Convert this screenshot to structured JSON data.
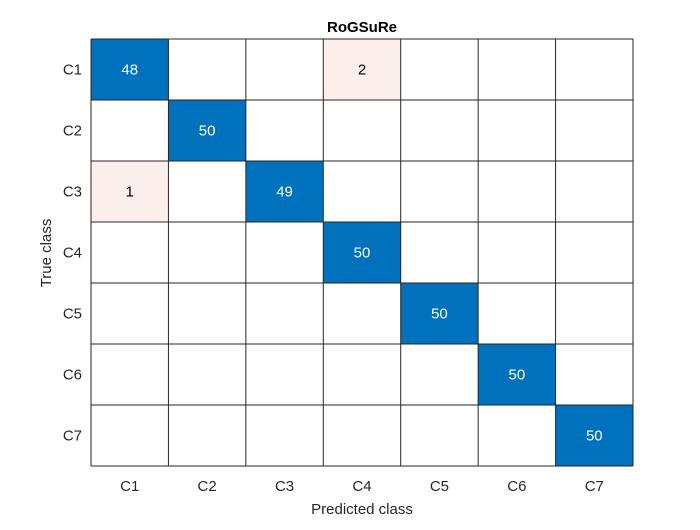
{
  "chart_data": {
    "type": "heatmap",
    "title": "RoGSuRe",
    "xlabel": "Predicted class",
    "ylabel": "True class",
    "row_labels": [
      "C1",
      "C2",
      "C3",
      "C4",
      "C5",
      "C6",
      "C7"
    ],
    "col_labels": [
      "C1",
      "C2",
      "C3",
      "C4",
      "C5",
      "C6",
      "C7"
    ],
    "matrix": [
      [
        48,
        null,
        null,
        2,
        null,
        null,
        null
      ],
      [
        null,
        50,
        null,
        null,
        null,
        null,
        null
      ],
      [
        1,
        null,
        49,
        null,
        null,
        null,
        null
      ],
      [
        null,
        null,
        null,
        50,
        null,
        null,
        null
      ],
      [
        null,
        null,
        null,
        null,
        50,
        null,
        null
      ],
      [
        null,
        null,
        null,
        null,
        null,
        50,
        null
      ],
      [
        null,
        null,
        null,
        null,
        null,
        null,
        50
      ]
    ],
    "grid": true
  },
  "colors": {
    "diagonal_fill": "#0072bd",
    "diagonal_text": "#ffffff",
    "offdiagonal_fill": "#fdf0ec",
    "offdiagonal_text": "#000000",
    "empty_fill": "#ffffff",
    "grid_line": "#262626",
    "axis_text": "#262626"
  }
}
